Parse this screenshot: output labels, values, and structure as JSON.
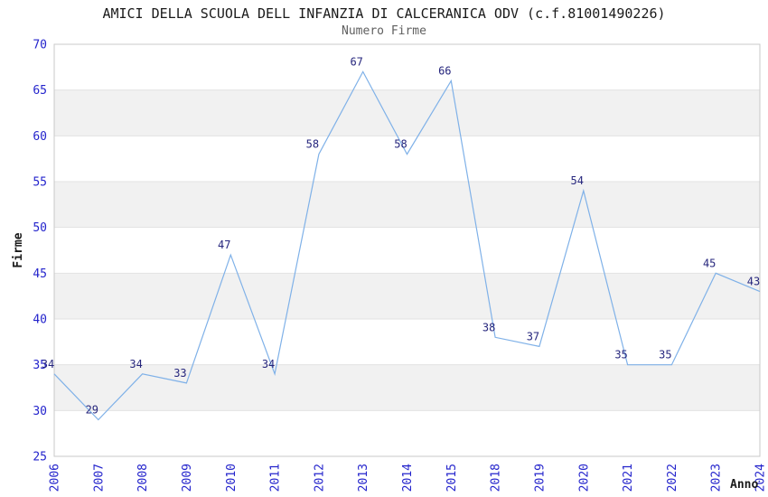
{
  "chart_data": {
    "type": "line",
    "title": "AMICI DELLA SCUOLA DELL INFANZIA DI CALCERANICA ODV (c.f.81001490226)",
    "subtitle": "Numero Firme",
    "xlabel": "Anno",
    "ylabel": "Firme",
    "categories": [
      "2006",
      "2007",
      "2008",
      "2009",
      "2010",
      "2011",
      "2012",
      "2013",
      "2014",
      "2015",
      "2018",
      "2019",
      "2020",
      "2021",
      "2022",
      "2023",
      "2024"
    ],
    "values": [
      34,
      29,
      34,
      33,
      47,
      34,
      58,
      67,
      58,
      66,
      38,
      37,
      54,
      35,
      35,
      45,
      43
    ],
    "ylim": [
      25,
      70
    ],
    "ytick_step": 5,
    "yticks": [
      25,
      30,
      35,
      40,
      45,
      50,
      55,
      60,
      65,
      70
    ],
    "grid": "horizontal",
    "banding": "alternating-5-unit-stripes",
    "legend": "none",
    "colors": {
      "line": "#7fb1e8",
      "data_label": "#26267d",
      "tick_label": "#2424cc",
      "title": "#1a1a1a",
      "subtitle": "#5f5f5f",
      "band": "#f1f1f1",
      "gridline": "#e2e2e2",
      "border": "#c8c8c8",
      "axis_title": "#1a1a1a",
      "background": "#ffffff"
    }
  }
}
